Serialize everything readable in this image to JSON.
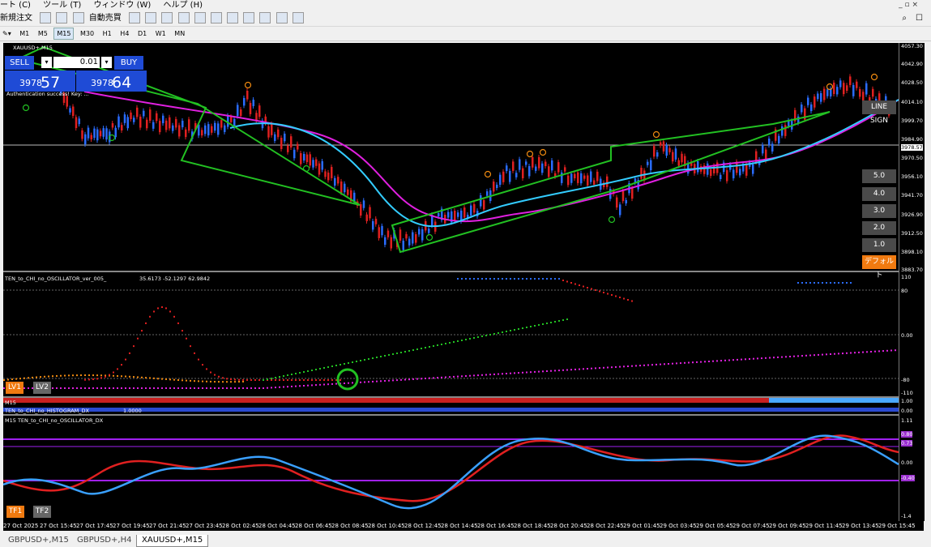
{
  "menu": [
    "ート (C)",
    "ツール (T)",
    "ウィンドウ (W)",
    "ヘルプ (H)"
  ],
  "window_buttons": "_ ▫ ×",
  "toolbar": {
    "new_order": "新規注文",
    "auto_trade": "自動売買"
  },
  "timeframes": [
    "M1",
    "M5",
    "M15",
    "M30",
    "H1",
    "H4",
    "D1",
    "W1",
    "MN"
  ],
  "timeframe_selected": "M15",
  "chart": {
    "symbol": "XAUUSD+,M15",
    "auth_text": "Authentication success! Key: ...",
    "sell_label": "SELL",
    "buy_label": "BUY",
    "lot": "0.01",
    "lot_arrow": "▾",
    "sell_small": "3978",
    "sell_big": "57",
    "buy_small": "3978",
    "buy_big": "64",
    "price_levels": [
      "4057.30",
      "4042.90",
      "4028.50",
      "4014.10",
      "3999.70",
      "3984.90",
      "3978.57",
      "3970.50",
      "3956.10",
      "3941.70",
      "3926.90",
      "3912.50",
      "3898.10",
      "3883.70"
    ],
    "current_price": "3978.57",
    "line_sign": "LINE SIGN",
    "scale_buttons": [
      "5.0",
      "4.0",
      "3.0",
      "2.0",
      "1.0"
    ],
    "default_button": "デフォルト"
  },
  "osc": {
    "title": "TEN_to_CHI_no_OSCILLATOR_ver_005_",
    "values": "35.6173 -52.1297 62.9842",
    "levels": [
      "110",
      "80",
      "0.00",
      "-80",
      "-110"
    ],
    "lv1": "LV1",
    "lv2": "LV2",
    "marks": [
      "2",
      "2",
      "1",
      "4",
      "2"
    ]
  },
  "hist": {
    "title": "M15",
    "title2": "TEN_to_CHI_no_HISTOGRAM_DX",
    "value": "1.0000",
    "levels": [
      "1.00",
      "0.00"
    ]
  },
  "osc_dx": {
    "title": "M15 TEN_to_CHI_no_OSCILLATOR_DX",
    "levels": [
      "1.11",
      "0.00",
      "-1.4"
    ],
    "tags": [
      "0.80",
      "0.73",
      "-0.40"
    ],
    "tf1": "TF1",
    "tf2": "TF2"
  },
  "time_labels": [
    "27 Oct 2025",
    "27 Oct 15:45",
    "27 Oct 17:45",
    "27 Oct 19:45",
    "27 Oct 21:45",
    "27 Oct 23:45",
    "28 Oct 02:45",
    "28 Oct 04:45",
    "28 Oct 06:45",
    "28 Oct 08:45",
    "28 Oct 10:45",
    "28 Oct 12:45",
    "28 Oct 14:45",
    "28 Oct 16:45",
    "28 Oct 18:45",
    "28 Oct 20:45",
    "28 Oct 22:45",
    "29 Oct 01:45",
    "29 Oct 03:45",
    "29 Oct 05:45",
    "29 Oct 07:45",
    "29 Oct 09:45",
    "29 Oct 11:45",
    "29 Oct 13:45",
    "29 Oct 15:45"
  ],
  "tabs": [
    "GBPUSD+,M15",
    "GBPUSD+,H4",
    "XAUUSD+,M15"
  ],
  "active_tab": "XAUUSD+,M15"
}
